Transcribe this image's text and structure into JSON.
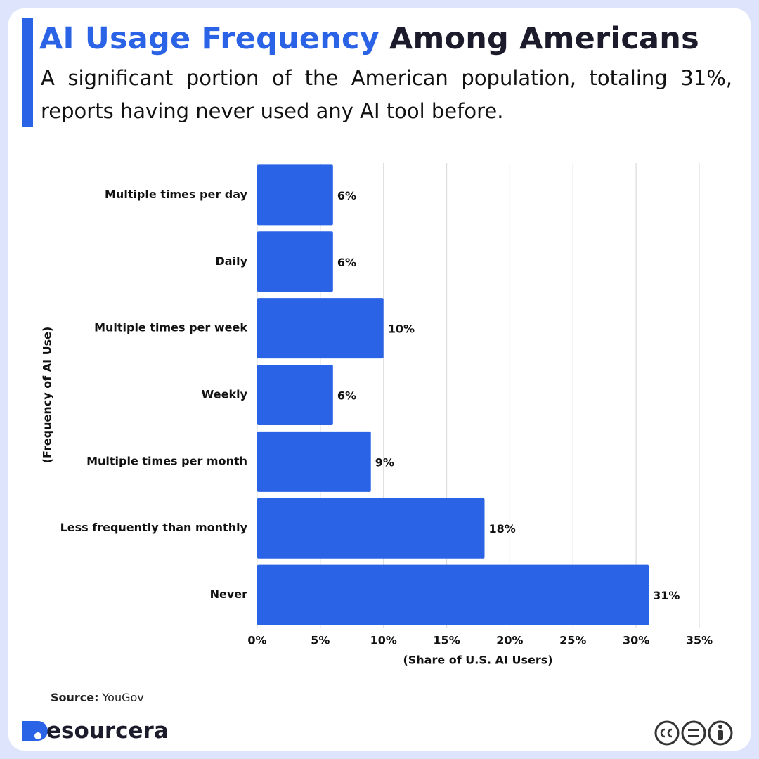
{
  "title_highlight": "AI Usage Frequency",
  "title": "Among Americans",
  "subtitle": "A significant portion of the American population, totaling 31%, reports having never used any AI tool before.",
  "chart_data": {
    "type": "bar",
    "orientation": "horizontal",
    "categories": [
      "Multiple times per day",
      "Daily",
      "Multiple times per week",
      "Weekly",
      "Multiple times per month",
      "Less frequently than monthly",
      "Never"
    ],
    "values": [
      6,
      6,
      10,
      6,
      9,
      18,
      31
    ],
    "value_labels": [
      "6%",
      "6%",
      "10%",
      "6%",
      "9%",
      "18%",
      "31%"
    ],
    "color": "#2b63e6",
    "xlim": [
      0,
      35
    ],
    "xticks": [
      {
        "value": 0,
        "label": "0%"
      },
      {
        "value": 5,
        "label": "5%"
      },
      {
        "value": 10,
        "label": "10%"
      },
      {
        "value": 15,
        "label": "15%"
      },
      {
        "value": 20,
        "label": "20%"
      },
      {
        "value": 25,
        "label": "25%"
      },
      {
        "value": 30,
        "label": "30%"
      },
      {
        "value": 35,
        "label": "35%"
      }
    ],
    "x_label": "(Share of U.S. AI Users)",
    "y_label": "(Frequency of AI Use)",
    "grid": true
  },
  "source_label": "Source:",
  "source": "YouGov",
  "logo": "esourcera"
}
